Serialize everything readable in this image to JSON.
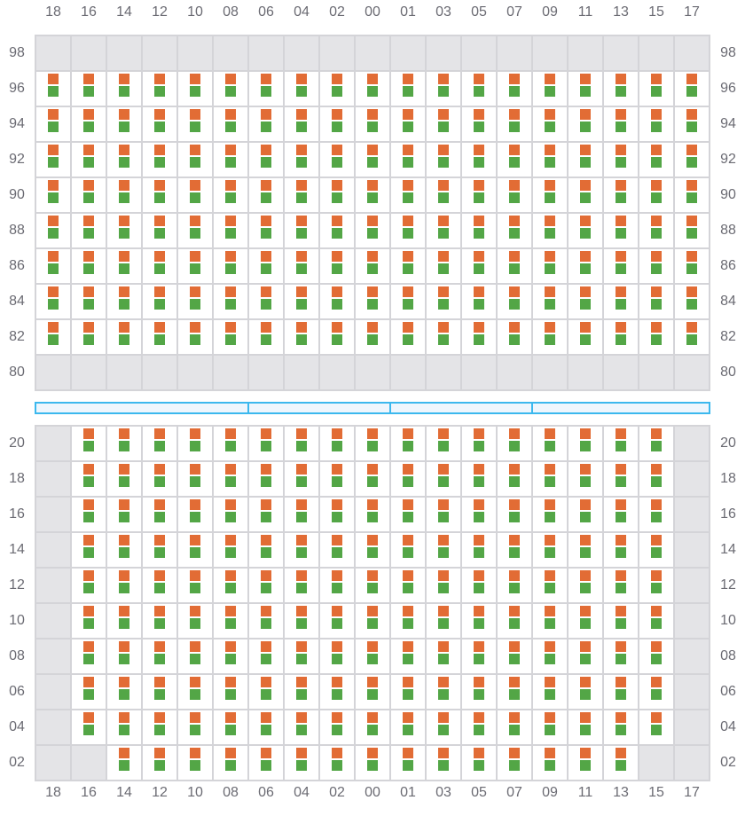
{
  "colors": {
    "top_marker": "#e26c35",
    "bottom_marker": "#53a646",
    "empty_cell": "#e4e4e7",
    "bar_border": "#3bb8ee"
  },
  "columns": [
    "18",
    "16",
    "14",
    "12",
    "10",
    "08",
    "06",
    "04",
    "02",
    "00",
    "01",
    "03",
    "05",
    "07",
    "09",
    "11",
    "13",
    "15",
    "17"
  ],
  "top_block": {
    "rows": [
      "98",
      "96",
      "94",
      "92",
      "90",
      "88",
      "86",
      "84",
      "82",
      "80"
    ],
    "empty_rows": [
      "98",
      "80"
    ],
    "empty_cells": []
  },
  "bottom_block": {
    "rows": [
      "20",
      "18",
      "16",
      "14",
      "12",
      "10",
      "08",
      "06",
      "04",
      "02"
    ],
    "empty_columns": [
      "18",
      "17"
    ],
    "empty_cells": [
      [
        "02",
        "16"
      ],
      [
        "02",
        "15"
      ]
    ]
  },
  "divider_bar": {
    "segments": 4
  }
}
